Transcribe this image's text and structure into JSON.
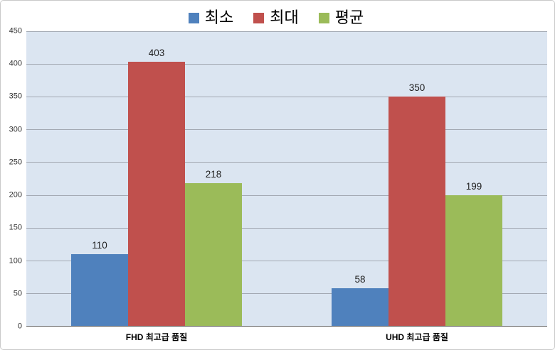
{
  "chart_data": {
    "type": "bar",
    "title": "",
    "xlabel": "",
    "ylabel": "",
    "categories": [
      "FHD 최고급 품질",
      "UHD 최고급 품질"
    ],
    "series": [
      {
        "name": "최소",
        "color": "#4f81bd",
        "values": [
          110,
          58
        ]
      },
      {
        "name": "최대",
        "color": "#c0504d",
        "values": [
          403,
          350
        ]
      },
      {
        "name": "평균",
        "color": "#9bbb59",
        "values": [
          218,
          199
        ]
      }
    ],
    "ylim": [
      0,
      450
    ],
    "ytick_step": 50,
    "yticks": [
      0,
      50,
      100,
      150,
      200,
      250,
      300,
      350,
      400,
      450
    ],
    "grid": true,
    "legend_position": "top"
  },
  "colors": {
    "plot_background": "#dbe5f1",
    "gridline": "#a3a9b3",
    "axis_line": "#5f5f5f",
    "frame_border": "#c9c9c9",
    "page_background": "#ffffff"
  }
}
